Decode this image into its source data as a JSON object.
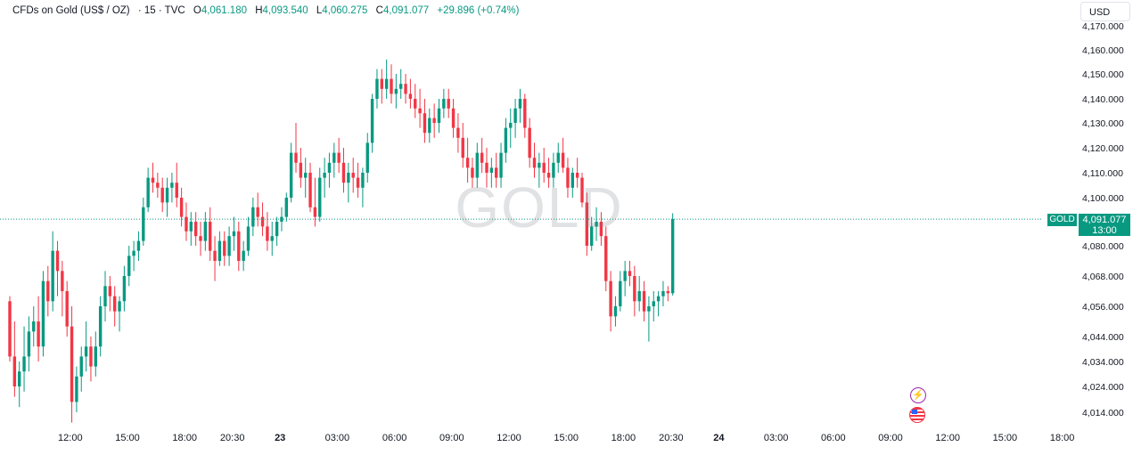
{
  "legend": {
    "symbol": "CFDs on Gold (US$ / OZ)",
    "interval": "· 15 · TVC",
    "open_label": "O",
    "open": "4,061.180",
    "high_label": "H",
    "high": "4,093.540",
    "low_label": "L",
    "low": "4,060.275",
    "close_label": "C",
    "close": "4,091.077",
    "change": "+29.896 (+0.74%)"
  },
  "currency": "USD",
  "watermark": "GOLD",
  "price_tag": {
    "symbol": "GOLD",
    "price": "4,091.077",
    "countdown": "13:00"
  },
  "events": {
    "bolt_icon": "lightning-icon",
    "flag_icon": "us-flag-icon"
  },
  "colors": {
    "up": "#089981",
    "down": "#f23645",
    "last_price_line": "#089981"
  },
  "chart_data": {
    "type": "candlestick",
    "timeframe": "15",
    "y_ticks": [
      4014,
      4024,
      4034,
      4044,
      4056,
      4068,
      4080,
      4100,
      4110,
      4120,
      4130,
      4140,
      4150,
      4160,
      4170
    ],
    "y_tick_labels": [
      "4,014.000",
      "4,024.000",
      "4,034.000",
      "4,044.000",
      "4,056.000",
      "4,068.000",
      "4,080.000",
      "4,100.000",
      "4,110.000",
      "4,120.000",
      "4,130.000",
      "4,140.000",
      "4,150.000",
      "4,160.000",
      "4,170.000"
    ],
    "x_ticks": [
      {
        "label": "12:00",
        "bar": 8
      },
      {
        "label": "15:00",
        "bar": 20
      },
      {
        "label": "18:00",
        "bar": 32
      },
      {
        "label": "20:30",
        "bar": 42
      },
      {
        "label": "23",
        "bar": 52,
        "bold": true
      },
      {
        "label": "03:00",
        "bar": 64
      },
      {
        "label": "06:00",
        "bar": 76
      },
      {
        "label": "09:00",
        "bar": 88
      },
      {
        "label": "12:00",
        "bar": 100
      },
      {
        "label": "15:00",
        "bar": 112
      },
      {
        "label": "18:00",
        "bar": 124
      },
      {
        "label": "20:30",
        "bar": 134
      },
      {
        "label": "24",
        "bar": 144,
        "bold": true
      },
      {
        "label": "03:00",
        "bar": 156
      },
      {
        "label": "06:00",
        "bar": 168
      },
      {
        "label": "09:00",
        "bar": 180
      },
      {
        "label": "12:00",
        "bar": 192
      },
      {
        "label": "15:00",
        "bar": 204
      },
      {
        "label": "18:00",
        "bar": 216
      }
    ],
    "last_price": 4091.077,
    "ohlc": [
      [
        4058,
        4060,
        4034,
        4036
      ],
      [
        4036,
        4050,
        4020,
        4024
      ],
      [
        4024,
        4034,
        4016,
        4030
      ],
      [
        4030,
        4048,
        4022,
        4036
      ],
      [
        4036,
        4052,
        4030,
        4046
      ],
      [
        4046,
        4056,
        4040,
        4050
      ],
      [
        4050,
        4060,
        4034,
        4040
      ],
      [
        4040,
        4070,
        4036,
        4066
      ],
      [
        4066,
        4072,
        4052,
        4058
      ],
      [
        4058,
        4086,
        4054,
        4078
      ],
      [
        4078,
        4082,
        4060,
        4070
      ],
      [
        4070,
        4074,
        4052,
        4062
      ],
      [
        4062,
        4066,
        4044,
        4048
      ],
      [
        4048,
        4056,
        4010,
        4018
      ],
      [
        4018,
        4032,
        4014,
        4028
      ],
      [
        4028,
        4040,
        4022,
        4036
      ],
      [
        4036,
        4050,
        4030,
        4040
      ],
      [
        4040,
        4044,
        4026,
        4032
      ],
      [
        4032,
        4046,
        4028,
        4040
      ],
      [
        4040,
        4060,
        4036,
        4056
      ],
      [
        4056,
        4070,
        4050,
        4064
      ],
      [
        4064,
        4068,
        4054,
        4060
      ],
      [
        4060,
        4064,
        4048,
        4054
      ],
      [
        4054,
        4060,
        4046,
        4058
      ],
      [
        4058,
        4072,
        4054,
        4068
      ],
      [
        4068,
        4080,
        4064,
        4076
      ],
      [
        4076,
        4082,
        4070,
        4078
      ],
      [
        4078,
        4086,
        4074,
        4082
      ],
      [
        4082,
        4100,
        4080,
        4096
      ],
      [
        4096,
        4112,
        4094,
        4108
      ],
      [
        4108,
        4114,
        4102,
        4106
      ],
      [
        4106,
        4110,
        4100,
        4104
      ],
      [
        4104,
        4108,
        4094,
        4098
      ],
      [
        4098,
        4108,
        4092,
        4104
      ],
      [
        4104,
        4110,
        4098,
        4106
      ],
      [
        4106,
        4114,
        4096,
        4100
      ],
      [
        4100,
        4104,
        4088,
        4092
      ],
      [
        4092,
        4098,
        4082,
        4086
      ],
      [
        4086,
        4094,
        4080,
        4090
      ],
      [
        4090,
        4094,
        4080,
        4084
      ],
      [
        4084,
        4090,
        4076,
        4082
      ],
      [
        4082,
        4094,
        4078,
        4090
      ],
      [
        4090,
        4096,
        4074,
        4078
      ],
      [
        4078,
        4084,
        4066,
        4074
      ],
      [
        4074,
        4086,
        4072,
        4082
      ],
      [
        4082,
        4086,
        4072,
        4076
      ],
      [
        4076,
        4088,
        4072,
        4084
      ],
      [
        4084,
        4092,
        4078,
        4086
      ],
      [
        4086,
        4090,
        4070,
        4074
      ],
      [
        4074,
        4082,
        4070,
        4078
      ],
      [
        4078,
        4092,
        4076,
        4088
      ],
      [
        4088,
        4100,
        4084,
        4096
      ],
      [
        4096,
        4102,
        4088,
        4092
      ],
      [
        4092,
        4098,
        4084,
        4088
      ],
      [
        4088,
        4094,
        4078,
        4082
      ],
      [
        4082,
        4090,
        4076,
        4084
      ],
      [
        4084,
        4092,
        4080,
        4090
      ],
      [
        4090,
        4096,
        4086,
        4092
      ],
      [
        4092,
        4102,
        4090,
        4100
      ],
      [
        4100,
        4122,
        4098,
        4118
      ],
      [
        4118,
        4130,
        4110,
        4114
      ],
      [
        4114,
        4120,
        4104,
        4108
      ],
      [
        4108,
        4116,
        4100,
        4110
      ],
      [
        4110,
        4114,
        4094,
        4096
      ],
      [
        4096,
        4108,
        4088,
        4092
      ],
      [
        4092,
        4112,
        4090,
        4108
      ],
      [
        4108,
        4116,
        4100,
        4110
      ],
      [
        4110,
        4118,
        4104,
        4114
      ],
      [
        4114,
        4122,
        4108,
        4118
      ],
      [
        4118,
        4124,
        4110,
        4114
      ],
      [
        4114,
        4120,
        4102,
        4106
      ],
      [
        4106,
        4114,
        4098,
        4110
      ],
      [
        4110,
        4116,
        4102,
        4108
      ],
      [
        4108,
        4114,
        4100,
        4104
      ],
      [
        4104,
        4112,
        4096,
        4110
      ],
      [
        4110,
        4126,
        4106,
        4122
      ],
      [
        4122,
        4142,
        4118,
        4140
      ],
      [
        4140,
        4152,
        4136,
        4148
      ],
      [
        4148,
        4152,
        4138,
        4144
      ],
      [
        4144,
        4156,
        4140,
        4148
      ],
      [
        4148,
        4154,
        4138,
        4142
      ],
      [
        4142,
        4150,
        4136,
        4144
      ],
      [
        4144,
        4152,
        4140,
        4146
      ],
      [
        4146,
        4150,
        4138,
        4142
      ],
      [
        4142,
        4148,
        4136,
        4140
      ],
      [
        4140,
        4146,
        4132,
        4136
      ],
      [
        4136,
        4144,
        4128,
        4134
      ],
      [
        4134,
        4140,
        4122,
        4126
      ],
      [
        4126,
        4136,
        4122,
        4132
      ],
      [
        4132,
        4138,
        4124,
        4130
      ],
      [
        4130,
        4140,
        4126,
        4136
      ],
      [
        4136,
        4144,
        4132,
        4140
      ],
      [
        4140,
        4144,
        4132,
        4136
      ],
      [
        4136,
        4140,
        4124,
        4128
      ],
      [
        4128,
        4134,
        4118,
        4124
      ],
      [
        4124,
        4130,
        4112,
        4116
      ],
      [
        4116,
        4124,
        4106,
        4112
      ],
      [
        4112,
        4116,
        4104,
        4108
      ],
      [
        4108,
        4122,
        4104,
        4118
      ],
      [
        4118,
        4124,
        4110,
        4114
      ],
      [
        4114,
        4120,
        4104,
        4110
      ],
      [
        4110,
        4116,
        4104,
        4112
      ],
      [
        4112,
        4118,
        4104,
        4108
      ],
      [
        4108,
        4122,
        4104,
        4118
      ],
      [
        4118,
        4132,
        4114,
        4128
      ],
      [
        4128,
        4136,
        4120,
        4130
      ],
      [
        4130,
        4140,
        4124,
        4136
      ],
      [
        4136,
        4144,
        4130,
        4140
      ],
      [
        4140,
        4142,
        4124,
        4128
      ],
      [
        4128,
        4132,
        4112,
        4116
      ],
      [
        4116,
        4122,
        4108,
        4112
      ],
      [
        4112,
        4118,
        4104,
        4114
      ],
      [
        4114,
        4120,
        4106,
        4110
      ],
      [
        4110,
        4116,
        4104,
        4108
      ],
      [
        4108,
        4118,
        4104,
        4114
      ],
      [
        4114,
        4122,
        4110,
        4118
      ],
      [
        4118,
        4124,
        4110,
        4112
      ],
      [
        4112,
        4116,
        4100,
        4104
      ],
      [
        4104,
        4112,
        4100,
        4110
      ],
      [
        4110,
        4116,
        4104,
        4108
      ],
      [
        4108,
        4110,
        4096,
        4098
      ],
      [
        4098,
        4102,
        4076,
        4080
      ],
      [
        4080,
        4092,
        4078,
        4088
      ],
      [
        4088,
        4096,
        4082,
        4090
      ],
      [
        4090,
        4094,
        4080,
        4084
      ],
      [
        4084,
        4088,
        4062,
        4066
      ],
      [
        4066,
        4070,
        4046,
        4052
      ],
      [
        4052,
        4060,
        4048,
        4056
      ],
      [
        4056,
        4070,
        4054,
        4066
      ],
      [
        4066,
        4074,
        4060,
        4070
      ],
      [
        4070,
        4074,
        4064,
        4068
      ],
      [
        4068,
        4072,
        4052,
        4058
      ],
      [
        4058,
        4068,
        4054,
        4062
      ],
      [
        4062,
        4066,
        4050,
        4054
      ],
      [
        4054,
        4060,
        4042,
        4056
      ],
      [
        4056,
        4062,
        4050,
        4058
      ],
      [
        4058,
        4062,
        4052,
        4060
      ],
      [
        4060,
        4066,
        4056,
        4062
      ],
      [
        4062,
        4064,
        4058,
        4061.18
      ],
      [
        4061.18,
        4093.54,
        4060.275,
        4091.077
      ]
    ]
  }
}
